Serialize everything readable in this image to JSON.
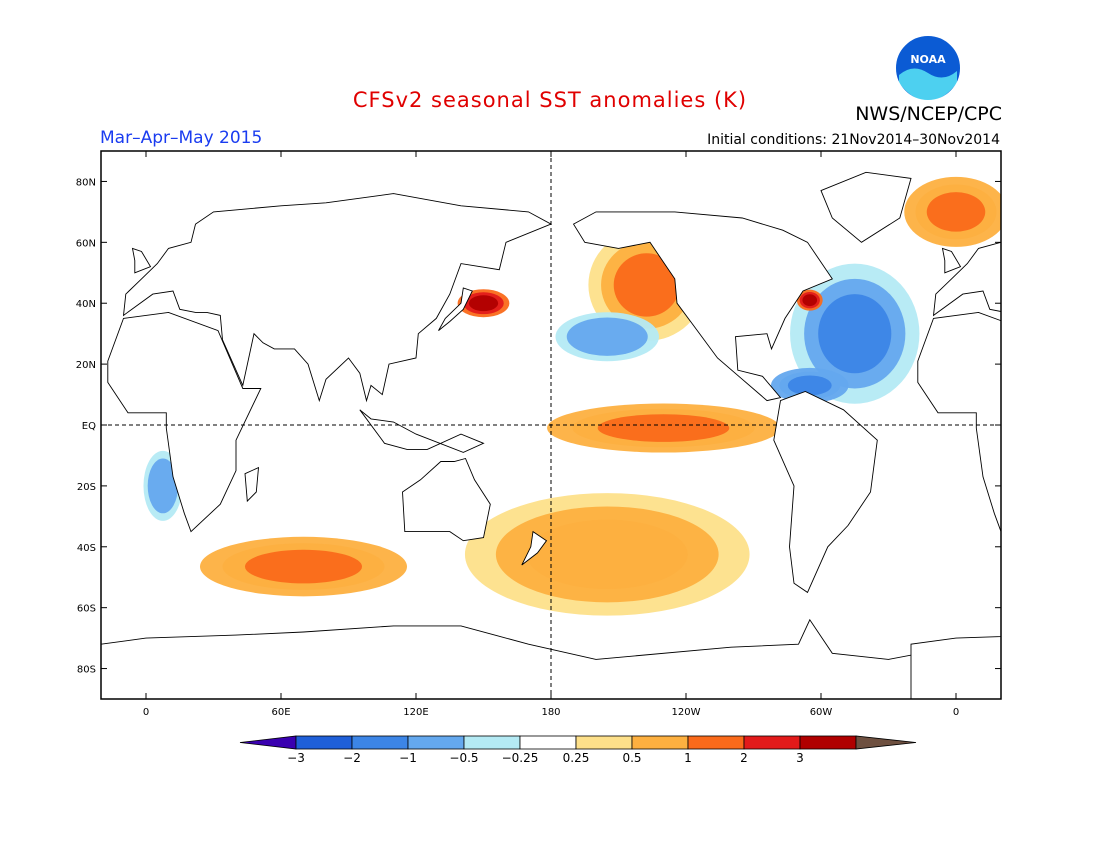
{
  "header": {
    "title": "CFSv2 seasonal SST anomalies (K)",
    "agency": "NWS/NCEP/CPC",
    "season": "Mar–Apr–May 2015",
    "initial_conditions": "Initial conditions: 21Nov2014–30Nov2014",
    "logo_text": "NOAA"
  },
  "map": {
    "lon_range": [
      -20,
      380
    ],
    "lat_range": [
      -90,
      90
    ],
    "lat_ticks": [
      {
        "value": 80,
        "label": "80N"
      },
      {
        "value": 60,
        "label": "60N"
      },
      {
        "value": 40,
        "label": "40N"
      },
      {
        "value": 20,
        "label": "20N"
      },
      {
        "value": 0,
        "label": "EQ"
      },
      {
        "value": -20,
        "label": "20S"
      },
      {
        "value": -40,
        "label": "40S"
      },
      {
        "value": -60,
        "label": "60S"
      },
      {
        "value": -80,
        "label": "80S"
      }
    ],
    "lon_ticks": [
      {
        "value": 0,
        "label": "0"
      },
      {
        "value": 60,
        "label": "60E"
      },
      {
        "value": 120,
        "label": "120E"
      },
      {
        "value": 180,
        "label": "180"
      },
      {
        "value": 240,
        "label": "120W"
      },
      {
        "value": 300,
        "label": "60W"
      },
      {
        "value": 360,
        "label": "0"
      }
    ]
  },
  "colorbar": {
    "labels": [
      "−3",
      "−2",
      "−1",
      "−0.5",
      "−0.25",
      "0.25",
      "0.5",
      "1",
      "2",
      "3"
    ],
    "colors": [
      "#3a00b0",
      "#1f5fd8",
      "#3c85e6",
      "#64a8ee",
      "#b4eaf4",
      "#ffffff",
      "#fde08a",
      "#fdb040",
      "#fa6a1a",
      "#e21a1a",
      "#b00000",
      "#6e5040"
    ]
  },
  "chart_data": {
    "type": "heatmap",
    "title": "CFSv2 seasonal SST anomalies (K)",
    "units": "K",
    "season": "Mar–Apr–May 2015",
    "features": [
      {
        "region": "equatorial central-eastern Pacific",
        "lon": [
          185,
          275
        ],
        "lat": [
          -8,
          6
        ],
        "anomaly": 1.5
      },
      {
        "region": "NE Pacific coast",
        "lon": [
          200,
          245
        ],
        "lat": [
          30,
          62
        ],
        "anomaly": 1.2
      },
      {
        "region": "central North Pacific",
        "lon": [
          185,
          225
        ],
        "lat": [
          22,
          36
        ],
        "anomaly": -0.6
      },
      {
        "region": "central North Atlantic",
        "lon": [
          290,
          340
        ],
        "lat": [
          10,
          50
        ],
        "anomaly": -1.0
      },
      {
        "region": "Kuroshio extension",
        "lon": [
          140,
          160
        ],
        "lat": [
          36,
          44
        ],
        "anomaly": 3.1
      },
      {
        "region": "Gulf of Maine",
        "lon": [
          290,
          300
        ],
        "lat": [
          38,
          44
        ],
        "anomaly": 3.1
      },
      {
        "region": "Southern Indian Ocean",
        "lon": [
          30,
          110
        ],
        "lat": [
          -55,
          -38
        ],
        "anomaly": 1.5
      },
      {
        "region": "South Pacific mid-latitudes",
        "lon": [
          150,
          260
        ],
        "lat": [
          -60,
          -25
        ],
        "anomaly": 1.0
      },
      {
        "region": "Nordic Seas",
        "lon": [
          340,
          380
        ],
        "lat": [
          60,
          80
        ],
        "anomaly": 1.5
      },
      {
        "region": "Benguela",
        "lon": [
          0,
          15
        ],
        "lat": [
          -30,
          -10
        ],
        "anomaly": -0.5
      },
      {
        "region": "Caribbean",
        "lon": [
          280,
          310
        ],
        "lat": [
          8,
          18
        ],
        "anomaly": -1.5
      }
    ]
  }
}
